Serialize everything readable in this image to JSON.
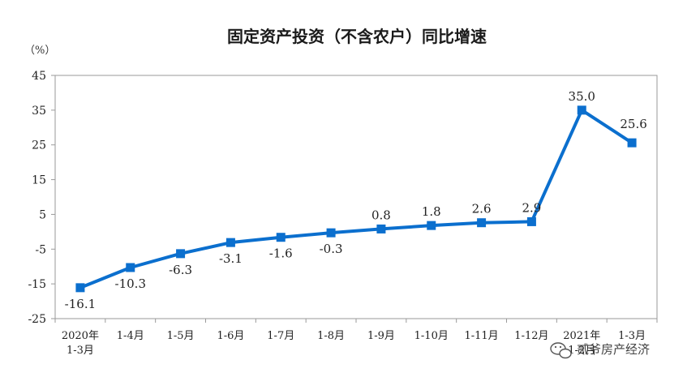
{
  "chart_data": {
    "type": "line",
    "title": "固定资产投资（不含农户）同比增速",
    "unit": "（%）",
    "ylim": [
      -25,
      45
    ],
    "yticks": [
      45,
      35,
      25,
      15,
      5,
      -5,
      -15,
      -25
    ],
    "grid": false,
    "legend": "none",
    "categories": [
      [
        "2020年",
        "1-3月"
      ],
      [
        "1-4月"
      ],
      [
        "1-5月"
      ],
      [
        "1-6月"
      ],
      [
        "1-7月"
      ],
      [
        "1-8月"
      ],
      [
        "1-9月"
      ],
      [
        "1-10月"
      ],
      [
        "1-11月"
      ],
      [
        "1-12月"
      ],
      [
        "2021年",
        "1-2月"
      ],
      [
        "1-3月"
      ]
    ],
    "series": [
      {
        "values": [
          -16.1,
          -10.3,
          -6.3,
          -3.1,
          -1.6,
          -0.3,
          0.8,
          1.8,
          2.6,
          2.9,
          35.0,
          25.6
        ],
        "labels": [
          "-16.1",
          "-10.3",
          "-6.3",
          "-3.1",
          "-1.6",
          "-0.3",
          "0.8",
          "1.8",
          "2.6",
          "2.9",
          "35.0",
          "25.6"
        ],
        "color": "#0b6fce"
      }
    ]
  },
  "watermark": {
    "icon": "wechat-icon",
    "text": "贰爷房产经济"
  }
}
